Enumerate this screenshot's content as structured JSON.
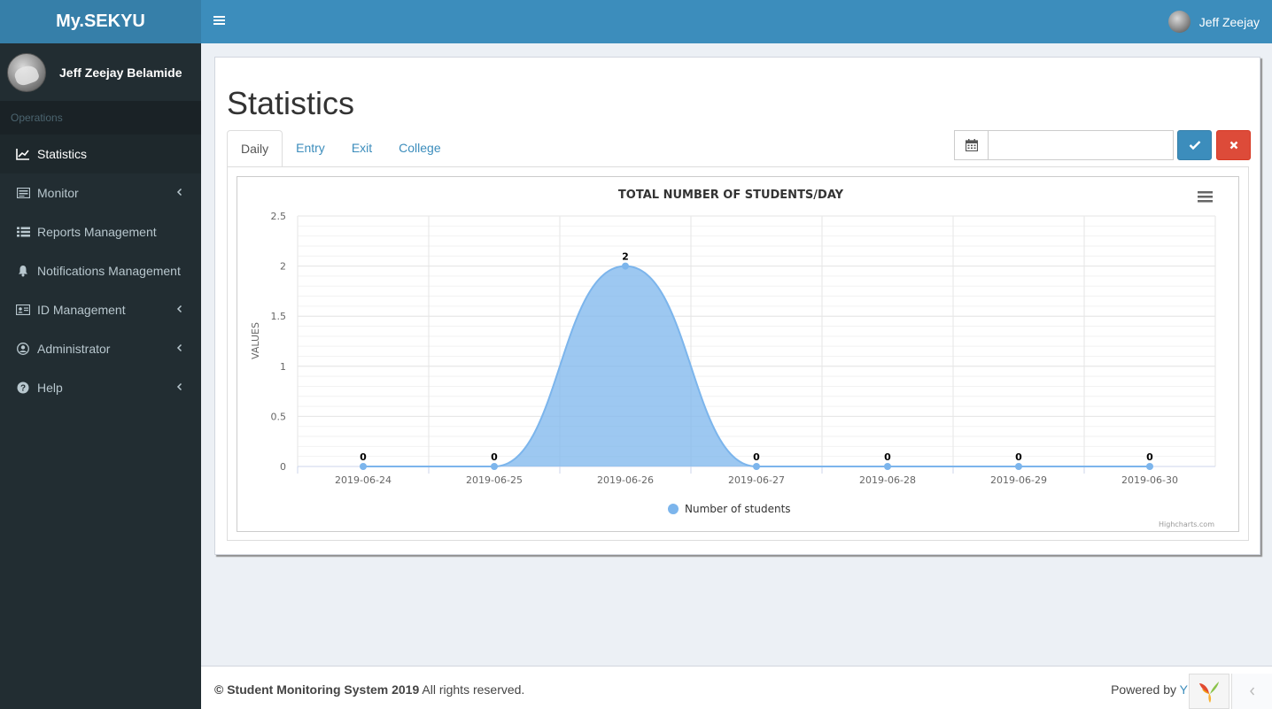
{
  "app": {
    "logo": "My.SEKYU"
  },
  "user": {
    "full_name": "Jeff Zeejay Belamide",
    "short_name": "Jeff Zeejay"
  },
  "sidebar": {
    "section": "Operations",
    "items": [
      {
        "label": "Statistics",
        "icon": "line-chart-icon",
        "active": true
      },
      {
        "label": "Monitor",
        "icon": "list-alt-icon",
        "has_submenu": true
      },
      {
        "label": "Reports Management",
        "icon": "list-icon"
      },
      {
        "label": "Notifications Management",
        "icon": "bell-icon"
      },
      {
        "label": "ID Management",
        "icon": "id-card-icon",
        "has_submenu": true
      },
      {
        "label": "Administrator",
        "icon": "user-circle-icon",
        "has_submenu": true
      },
      {
        "label": "Help",
        "icon": "question-circle-icon",
        "has_submenu": true
      }
    ]
  },
  "page": {
    "title": "Statistics",
    "tabs": [
      "Daily",
      "Entry",
      "Exit",
      "College"
    ],
    "active_tab": "Daily",
    "date_value": "",
    "date_placeholder": ""
  },
  "chart_data": {
    "type": "area",
    "title": "TOTAL NUMBER OF STUDENTS/DAY",
    "ylabel": "VALUES",
    "xlabel": "",
    "categories": [
      "2019-06-24",
      "2019-06-25",
      "2019-06-26",
      "2019-06-27",
      "2019-06-28",
      "2019-06-29",
      "2019-06-30"
    ],
    "series": [
      {
        "name": "Number of students",
        "values": [
          0,
          0,
          2,
          0,
          0,
          0,
          0
        ],
        "color": "#7cb5ec"
      }
    ],
    "ylim": [
      0,
      2.5
    ],
    "yticks": [
      "0",
      "0.5",
      "1",
      "1.5",
      "2",
      "2.5"
    ],
    "grid": true,
    "legend": "bottom-center",
    "credits": "Highcharts.com",
    "smooth": true,
    "data_labels": true
  },
  "footer": {
    "copyright_symbol": "©",
    "app_name": "Student Monitoring System 2019",
    "rights": "All rights reserved.",
    "powered_by": "Powered by",
    "powered_link": "Y"
  },
  "colors": {
    "header": "#3c8dbc",
    "logo_bg": "#367fa9",
    "sidebar": "#222d32",
    "danger": "#dd4b39"
  }
}
